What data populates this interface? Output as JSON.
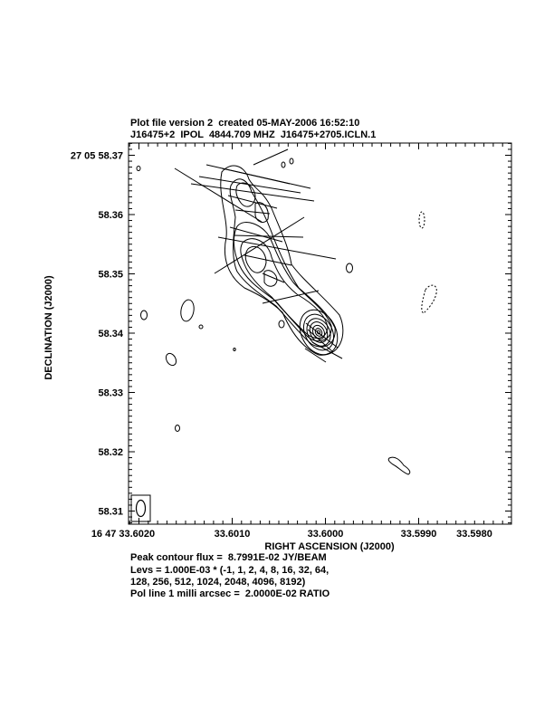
{
  "header": {
    "line1": "Plot file version 2  created 05-MAY-2006 16:52:10",
    "line2": "J16475+2  IPOL  4844.709 MHZ  J16475+2705.ICLN.1"
  },
  "footer": {
    "peak": "Peak contour flux =  8.7991E-02 JY/BEAM",
    "levs1": "Levs = 1.000E-03 * (-1, 1, 2, 4, 8, 16, 32, 64,",
    "levs2": "128, 256, 512, 1024, 2048, 4096, 8192)",
    "pol": "Pol line 1 milli arcsec =  2.0000E-02 RATIO"
  },
  "chart_data": {
    "type": "contour",
    "xlabel": "RIGHT ASCENSION (J2000)",
    "ylabel": "DECLINATION (J2000)",
    "x_ticks": [
      "16 47 33.6020",
      "33.6010",
      "33.6000",
      "33.5990",
      "33.5980"
    ],
    "y_ticks": [
      "27 05 58.37",
      "58.36",
      "58.35",
      "58.34",
      "58.33",
      "58.32",
      "58.31"
    ],
    "peak_flux_jy_per_beam": 0.087991,
    "contour_base": 0.001,
    "contour_levels": [
      -1,
      1,
      2,
      4,
      8,
      16,
      32,
      64,
      128,
      256,
      512,
      1024,
      2048,
      4096,
      8192
    ],
    "pol_line_scale": "1 milli arcsec = 2.0000E-02 RATIO",
    "core_position": {
      "ra_s": 33.5999,
      "dec_s": 58.34
    }
  }
}
